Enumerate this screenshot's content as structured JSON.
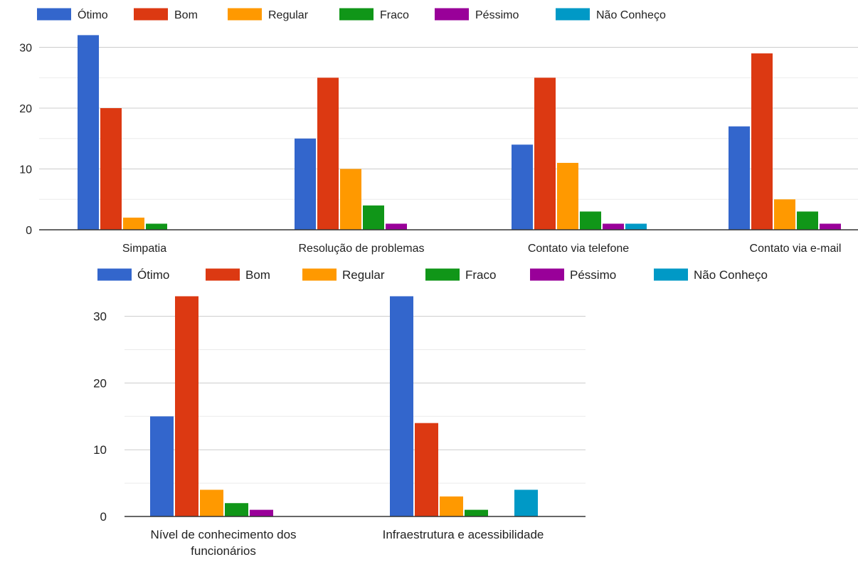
{
  "colors": {
    "grid": "#cccccc",
    "grid_minor": "#ebebeb",
    "axis": "#333333",
    "text": "#222222"
  },
  "legend": {
    "items": [
      {
        "label": "Ótimo",
        "color": "#3366cc"
      },
      {
        "label": "Bom",
        "color": "#dc3912"
      },
      {
        "label": "Regular",
        "color": "#ff9900"
      },
      {
        "label": "Fraco",
        "color": "#109618"
      },
      {
        "label": "Péssimo",
        "color": "#990099"
      },
      {
        "label": "Não Conheço",
        "color": "#0099c6"
      }
    ]
  },
  "chart_data": [
    {
      "type": "bar",
      "title": "",
      "xlabel": "",
      "ylabel": "",
      "categories": [
        "Simpatia",
        "Resolução de problemas",
        "Contato via telefone",
        "Contato via e-mail"
      ],
      "ylim": [
        0,
        32
      ],
      "yticks": [
        0,
        10,
        20,
        30
      ],
      "grid": true,
      "legend_position": "top-left",
      "series": [
        {
          "name": "Ótimo",
          "values": [
            32,
            15,
            14,
            17
          ]
        },
        {
          "name": "Bom",
          "values": [
            20,
            25,
            25,
            29
          ]
        },
        {
          "name": "Regular",
          "values": [
            2,
            10,
            11,
            5
          ]
        },
        {
          "name": "Fraco",
          "values": [
            1,
            4,
            3,
            3
          ]
        },
        {
          "name": "Péssimo",
          "values": [
            0,
            1,
            1,
            1
          ]
        },
        {
          "name": "Não Conheço",
          "values": [
            0,
            0,
            1,
            0
          ]
        }
      ]
    },
    {
      "type": "bar",
      "title": "",
      "xlabel": "",
      "ylabel": "",
      "categories": [
        "Nível de conhecimento dos funcionários",
        "Infraestrutura e acessibilidade"
      ],
      "ylim": [
        0,
        33
      ],
      "yticks": [
        0,
        10,
        20,
        30
      ],
      "grid": true,
      "legend_position": "top",
      "series": [
        {
          "name": "Ótimo",
          "values": [
            15,
            33
          ]
        },
        {
          "name": "Bom",
          "values": [
            33,
            14
          ]
        },
        {
          "name": "Regular",
          "values": [
            4,
            3
          ]
        },
        {
          "name": "Fraco",
          "values": [
            2,
            1
          ]
        },
        {
          "name": "Péssimo",
          "values": [
            1,
            0
          ]
        },
        {
          "name": "Não Conheço",
          "values": [
            0,
            4
          ]
        }
      ]
    }
  ]
}
